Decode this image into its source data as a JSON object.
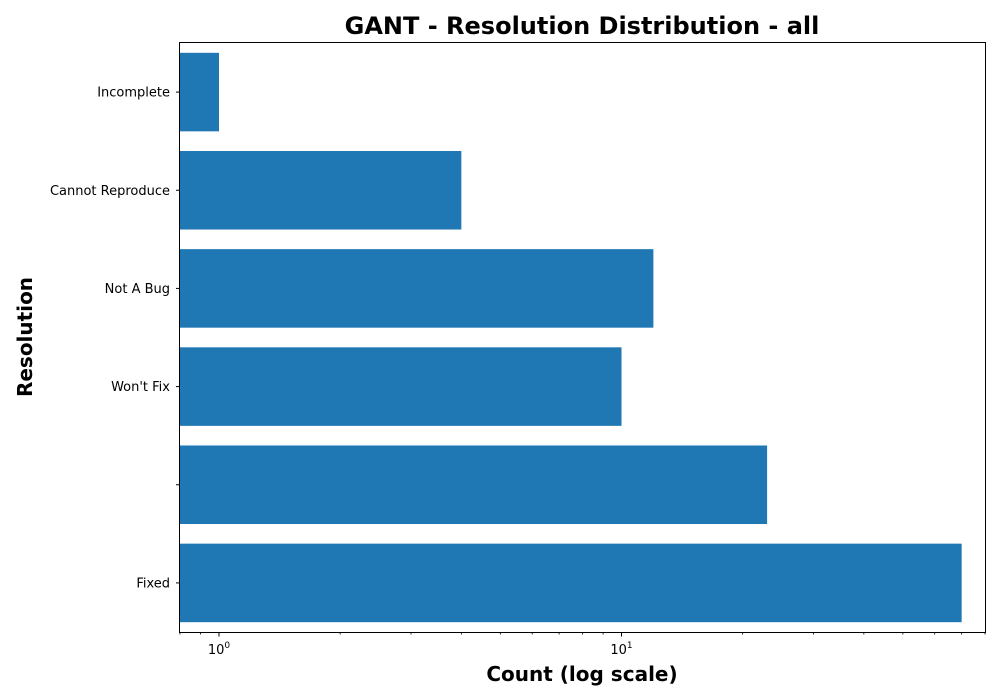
{
  "chart_data": {
    "type": "bar",
    "orientation": "horizontal",
    "title": "GANT - Resolution Distribution - all",
    "xlabel": "Count (log scale)",
    "ylabel": "Resolution",
    "x_scale": "log",
    "xlim": [
      0.8,
      80
    ],
    "x_major_ticks": [
      {
        "value": 1,
        "base": "10",
        "exp": "0"
      },
      {
        "value": 10,
        "base": "10",
        "exp": "1"
      }
    ],
    "categories": [
      "Fixed",
      "",
      "Won't Fix",
      "Not A Bug",
      "Cannot Reproduce",
      "Incomplete"
    ],
    "values": [
      70,
      23,
      10,
      12,
      4,
      1
    ],
    "bar_color": "#1f77b4",
    "grid": false,
    "legend": "none"
  }
}
